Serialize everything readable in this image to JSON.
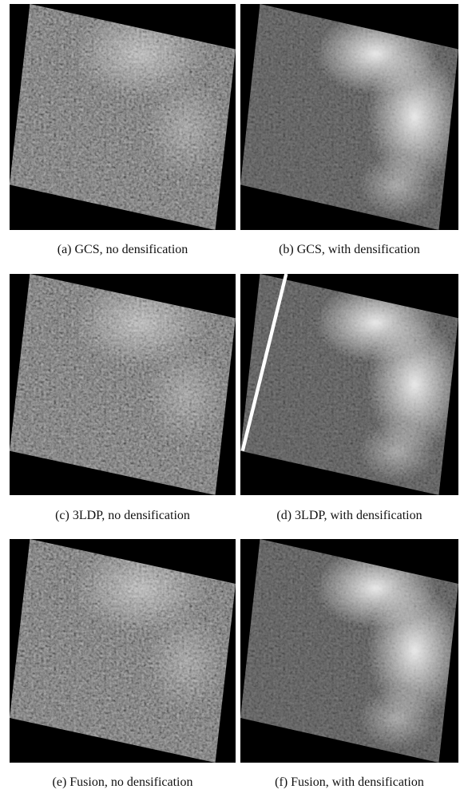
{
  "figure": {
    "panels": [
      {
        "caption": "(a) GCS, no densification"
      },
      {
        "caption": "(b) GCS, with densification"
      },
      {
        "caption": "(c) 3LDP, no densification"
      },
      {
        "caption": "(d) 3LDP, with densification"
      },
      {
        "caption": "(e) Fusion, no densification"
      },
      {
        "caption": "(f) Fusion, with densification"
      }
    ]
  }
}
